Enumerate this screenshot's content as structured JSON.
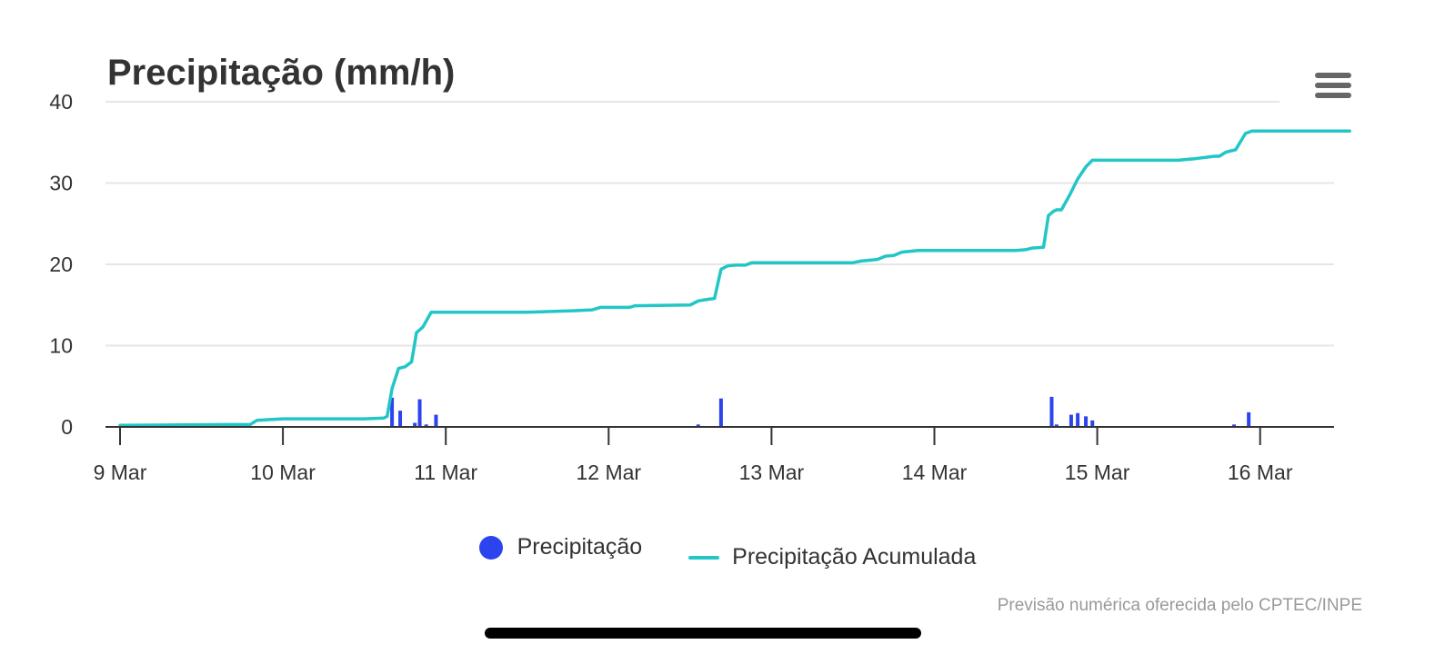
{
  "chart_data": {
    "type": "line+bar",
    "title": "Precipitação (mm/h)",
    "xlabel": "",
    "ylabel": "",
    "ylim": [
      0,
      40
    ],
    "yticks": [
      0,
      10,
      20,
      30,
      40
    ],
    "xlim": [
      0,
      7.55
    ],
    "xticks": [
      {
        "x": 0,
        "label": "9 Mar"
      },
      {
        "x": 1,
        "label": "10 Mar"
      },
      {
        "x": 2,
        "label": "11 Mar"
      },
      {
        "x": 3,
        "label": "12 Mar"
      },
      {
        "x": 4,
        "label": "13 Mar"
      },
      {
        "x": 5,
        "label": "14 Mar"
      },
      {
        "x": 6,
        "label": "15 Mar"
      },
      {
        "x": 7,
        "label": "16 Mar"
      }
    ],
    "x_unit": "days from 9 Mar 00:00",
    "grid": true,
    "legend_position": "bottom-center",
    "series": [
      {
        "name": "Precipitação",
        "type": "bar",
        "color": "#2b44ee",
        "points": [
          [
            1.67,
            3.6
          ],
          [
            1.72,
            2.0
          ],
          [
            1.81,
            0.5
          ],
          [
            1.84,
            3.4
          ],
          [
            1.88,
            0.3
          ],
          [
            1.94,
            1.5
          ],
          [
            3.55,
            0.3
          ],
          [
            3.69,
            3.5
          ],
          [
            5.72,
            3.7
          ],
          [
            5.75,
            0.3
          ],
          [
            5.84,
            1.5
          ],
          [
            5.88,
            1.7
          ],
          [
            5.93,
            1.3
          ],
          [
            5.97,
            0.8
          ],
          [
            6.84,
            0.3
          ],
          [
            6.93,
            1.8
          ]
        ]
      },
      {
        "name": "Precipitação Acumulada",
        "type": "line",
        "color": "#22c6c6",
        "points": [
          [
            0,
            0.2
          ],
          [
            0.8,
            0.3
          ],
          [
            0.84,
            0.8
          ],
          [
            0.92,
            0.9
          ],
          [
            1.0,
            1.0
          ],
          [
            1.5,
            1.0
          ],
          [
            1.62,
            1.1
          ],
          [
            1.64,
            1.3
          ],
          [
            1.67,
            4.7
          ],
          [
            1.71,
            7.2
          ],
          [
            1.75,
            7.4
          ],
          [
            1.79,
            8.0
          ],
          [
            1.82,
            11.6
          ],
          [
            1.86,
            12.3
          ],
          [
            1.91,
            14.1
          ],
          [
            2.0,
            14.1
          ],
          [
            2.5,
            14.1
          ],
          [
            2.8,
            14.3
          ],
          [
            2.9,
            14.4
          ],
          [
            2.95,
            14.7
          ],
          [
            3.0,
            14.7
          ],
          [
            3.13,
            14.7
          ],
          [
            3.16,
            14.9
          ],
          [
            3.5,
            15.0
          ],
          [
            3.55,
            15.5
          ],
          [
            3.61,
            15.7
          ],
          [
            3.65,
            15.8
          ],
          [
            3.69,
            19.4
          ],
          [
            3.73,
            19.8
          ],
          [
            3.78,
            19.9
          ],
          [
            3.84,
            19.9
          ],
          [
            3.88,
            20.2
          ],
          [
            4.0,
            20.2
          ],
          [
            4.5,
            20.2
          ],
          [
            4.55,
            20.4
          ],
          [
            4.65,
            20.6
          ],
          [
            4.7,
            21.0
          ],
          [
            4.75,
            21.1
          ],
          [
            4.8,
            21.5
          ],
          [
            4.9,
            21.7
          ],
          [
            5.0,
            21.7
          ],
          [
            5.5,
            21.7
          ],
          [
            5.56,
            21.8
          ],
          [
            5.6,
            22.0
          ],
          [
            5.67,
            22.1
          ],
          [
            5.7,
            26.0
          ],
          [
            5.73,
            26.5
          ],
          [
            5.75,
            26.7
          ],
          [
            5.78,
            26.7
          ],
          [
            5.83,
            28.5
          ],
          [
            5.88,
            30.5
          ],
          [
            5.93,
            32.0
          ],
          [
            5.97,
            32.8
          ],
          [
            6.0,
            32.8
          ],
          [
            6.5,
            32.8
          ],
          [
            6.55,
            32.9
          ],
          [
            6.6,
            33.0
          ],
          [
            6.72,
            33.3
          ],
          [
            6.75,
            33.3
          ],
          [
            6.79,
            33.8
          ],
          [
            6.85,
            34.1
          ],
          [
            6.91,
            36.1
          ],
          [
            6.95,
            36.4
          ],
          [
            7.0,
            36.4
          ],
          [
            7.55,
            36.4
          ]
        ]
      }
    ]
  },
  "legend": {
    "bar_label": "Precipitação",
    "line_label": "Precipitação Acumulada"
  },
  "credits": "Previsão numérica oferecida pelo CPTEC/INPE",
  "colors": {
    "bar": "#2b44ee",
    "line": "#22c6c6",
    "grid": "#e6e6e6",
    "axis": "#333333"
  },
  "menu_icon": "hamburger-menu-icon"
}
